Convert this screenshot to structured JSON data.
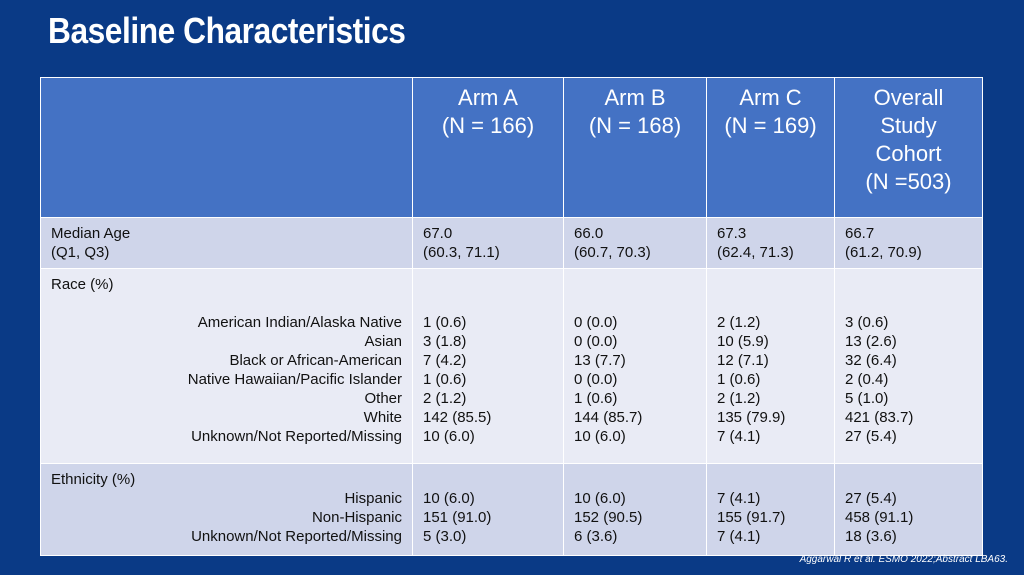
{
  "title": "Baseline Characteristics",
  "footer": "Aggarwal R et al. ESMO 2022;Abstract LBA63.",
  "header": {
    "arm_a": [
      "Arm A",
      "(N = 166)"
    ],
    "arm_b": [
      "Arm B",
      "(N = 168)"
    ],
    "arm_c": [
      "Arm C",
      "(N = 169)"
    ],
    "overall": [
      "Overall",
      "Study",
      "Cohort",
      "(N =503)"
    ]
  },
  "age": {
    "label": [
      "Median Age",
      "(Q1, Q3)"
    ],
    "arm_a": [
      "67.0",
      "(60.3, 71.1)"
    ],
    "arm_b": [
      "66.0",
      "(60.7, 70.3)"
    ],
    "arm_c": [
      "67.3",
      "(62.4, 71.3)"
    ],
    "overall": [
      "66.7",
      "(61.2, 70.9)"
    ]
  },
  "race": {
    "label": "Race (%)",
    "categories": [
      "American Indian/Alaska Native",
      "Asian",
      "Black or African-American",
      "Native Hawaiian/Pacific Islander",
      "Other",
      "White",
      "Unknown/Not Reported/Missing"
    ],
    "arm_a": [
      "1 (0.6)",
      "3 (1.8)",
      "7 (4.2)",
      "1 (0.6)",
      "2 (1.2)",
      "142 (85.5)",
      "10 (6.0)"
    ],
    "arm_b": [
      "0 (0.0)",
      "0 (0.0)",
      "13 (7.7)",
      "0 (0.0)",
      "1 (0.6)",
      "144 (85.7)",
      "10 (6.0)"
    ],
    "arm_c": [
      "2 (1.2)",
      "10 (5.9)",
      "12 (7.1)",
      "1 (0.6)",
      "2 (1.2)",
      "135 (79.9)",
      "7 (4.1)"
    ],
    "overall": [
      "3 (0.6)",
      "13 (2.6)",
      "32 (6.4)",
      "2 (0.4)",
      "5 (1.0)",
      "421 (83.7)",
      "27 (5.4)"
    ]
  },
  "ethnicity": {
    "label": "Ethnicity (%)",
    "categories": [
      "Hispanic",
      "Non-Hispanic",
      "Unknown/Not Reported/Missing"
    ],
    "arm_a": [
      "10 (6.0)",
      "151 (91.0)",
      "5 (3.0)"
    ],
    "arm_b": [
      "10 (6.0)",
      "152 (90.5)",
      "6 (3.6)"
    ],
    "arm_c": [
      "7 (4.1)",
      "155 (91.7)",
      "7 (4.1)"
    ],
    "overall": [
      "27 (5.4)",
      "458 (91.1)",
      "18 (3.6)"
    ]
  }
}
